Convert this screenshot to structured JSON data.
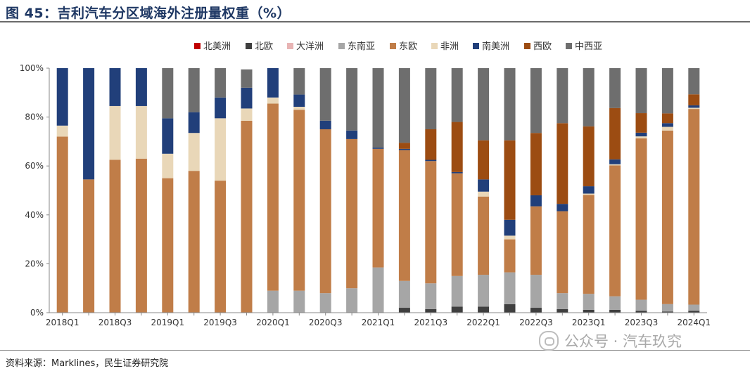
{
  "header": {
    "title": "图 45：吉利汽车分区域海外注册量权重（%）"
  },
  "footer": {
    "source": "资料来源：Marklines，民生证券研究院"
  },
  "watermark": {
    "text": "公众号 · 汽车玖究"
  },
  "chart_data": {
    "type": "bar",
    "stacked": true,
    "normalized_percent": true,
    "title": "",
    "xlabel": "",
    "ylabel": "",
    "ylim": [
      0,
      100
    ],
    "y_ticks": [
      "0%",
      "20%",
      "40%",
      "60%",
      "80%",
      "100%"
    ],
    "legend_position": "top",
    "grid": false,
    "categories": [
      "2018Q1",
      "2018Q2",
      "2018Q3",
      "2018Q4",
      "2019Q1",
      "2019Q2",
      "2019Q3",
      "2019Q4",
      "2020Q1",
      "2020Q2",
      "2020Q3",
      "2020Q4",
      "2021Q1",
      "2021Q2",
      "2021Q3",
      "2021Q4",
      "2022Q1",
      "2022Q2",
      "2022Q3",
      "2022Q4",
      "2023Q1",
      "2023Q2",
      "2023Q3",
      "2023Q4",
      "2024Q1"
    ],
    "x_tick_labels": [
      "2018Q1",
      "",
      "2018Q3",
      "",
      "2019Q1",
      "",
      "2019Q3",
      "",
      "2020Q1",
      "",
      "2020Q3",
      "",
      "2021Q1",
      "",
      "2021Q3",
      "",
      "2022Q1",
      "",
      "2022Q3",
      "",
      "2023Q1",
      "",
      "2023Q3",
      "",
      "2024Q1"
    ],
    "series": [
      {
        "name": "北美洲",
        "color": "#c00000",
        "values": [
          0,
          0,
          0,
          0,
          0,
          0,
          0,
          0,
          0,
          0,
          0,
          0,
          0,
          0,
          0,
          0,
          0,
          0,
          0,
          0,
          0,
          0,
          0,
          0,
          0
        ]
      },
      {
        "name": "北欧",
        "color": "#3f3f3f",
        "values": [
          0,
          0,
          0,
          0,
          0,
          0,
          0,
          0,
          0,
          0,
          0,
          0,
          0,
          2,
          1.5,
          2.5,
          2.5,
          3.5,
          2,
          1.5,
          1.2,
          1.2,
          0.8,
          0.5,
          0.8
        ]
      },
      {
        "name": "大洋洲",
        "color": "#e8b4b4",
        "values": [
          0,
          0,
          0,
          0,
          0,
          0,
          0,
          0,
          0,
          0,
          0,
          0,
          0,
          0,
          0,
          0,
          0,
          0,
          0,
          0,
          0,
          0,
          0,
          0,
          0
        ]
      },
      {
        "name": "东南亚",
        "color": "#a6a6a6",
        "values": [
          0,
          0,
          0,
          0,
          0,
          0,
          0,
          0,
          9,
          9,
          8,
          10,
          18.5,
          11,
          10.5,
          12.5,
          13,
          13,
          13.5,
          6.5,
          6.5,
          5.5,
          4.5,
          3,
          2.5
        ]
      },
      {
        "name": "东欧",
        "color": "#c07d48",
        "values": [
          72,
          54.5,
          62.5,
          63,
          55,
          58,
          54,
          78.5,
          76.5,
          74,
          67,
          61,
          48.5,
          53.5,
          50,
          42,
          32,
          13.5,
          28,
          33.5,
          40.5,
          53.5,
          66,
          71,
          80
        ]
      },
      {
        "name": "非洲",
        "color": "#e9d7b8",
        "values": [
          4.5,
          0,
          22,
          21.5,
          10,
          15.5,
          25.5,
          5,
          2.5,
          1.2,
          0,
          0,
          0,
          0,
          0,
          0,
          2,
          1.5,
          0,
          0,
          0.5,
          0.5,
          0.8,
          1.5,
          0.5
        ]
      },
      {
        "name": "南美洲",
        "color": "#213f7a",
        "values": [
          23.5,
          45.5,
          15.5,
          15.5,
          14.5,
          8.5,
          8.5,
          8.5,
          12,
          5,
          3.5,
          3.5,
          0.5,
          0.5,
          0.5,
          0.5,
          5,
          6.5,
          4.5,
          3,
          3,
          2,
          1.5,
          1.5,
          1
        ]
      },
      {
        "name": "西欧",
        "color": "#9c4c12",
        "values": [
          0,
          0,
          0,
          0,
          0,
          0,
          0,
          0,
          0,
          0,
          0,
          0,
          0,
          2.5,
          12.5,
          20.5,
          16,
          32.5,
          25.5,
          33,
          24.5,
          21,
          8,
          4,
          4.5
        ]
      },
      {
        "name": "中西亚",
        "color": "#6e6e6e",
        "values": [
          0,
          0,
          0,
          0,
          20.5,
          18,
          12,
          7.5,
          0,
          10.8,
          21.5,
          25.5,
          32.5,
          30.5,
          25,
          22,
          29.5,
          29.5,
          26.5,
          22.5,
          23.8,
          16.3,
          18.4,
          18.5,
          10.7
        ]
      }
    ]
  }
}
